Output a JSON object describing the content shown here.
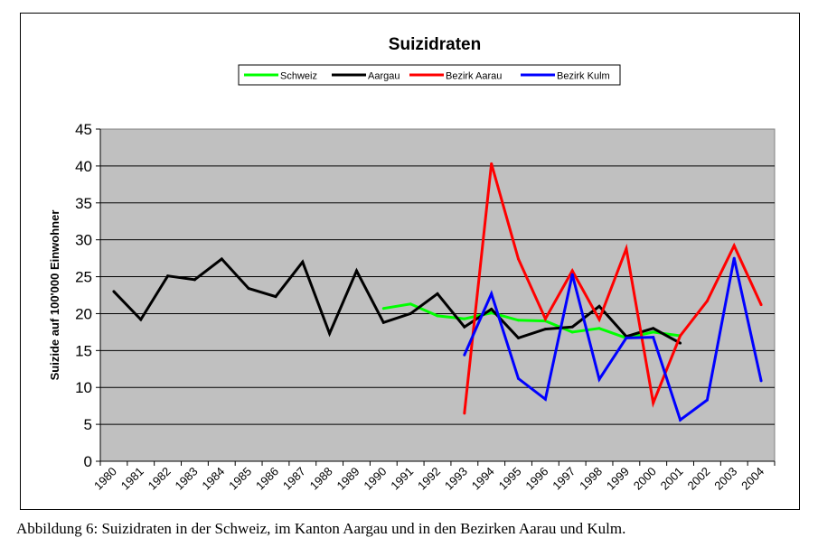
{
  "chart_data": {
    "type": "line",
    "title": "Suizidraten",
    "xlabel": "",
    "ylabel": "Suizide auf 100'000 Einwohner",
    "ylim": [
      0,
      45
    ],
    "yticks": [
      "0",
      "5",
      "10",
      "15",
      "20",
      "25",
      "30",
      "35",
      "40",
      "45"
    ],
    "categories": [
      "1980",
      "1981",
      "1982",
      "1983",
      "1984",
      "1985",
      "1986",
      "1987",
      "1988",
      "1989",
      "1990",
      "1991",
      "1992",
      "1993",
      "1994",
      "1995",
      "1996",
      "1997",
      "1998",
      "1999",
      "2000",
      "2001",
      "2002",
      "2003",
      "2004"
    ],
    "grid": true,
    "legend_position": "top",
    "plot_background": "#c0c0c0",
    "series": [
      {
        "name": "Schweiz",
        "color": "#00ff00",
        "values": [
          null,
          null,
          null,
          null,
          null,
          null,
          null,
          null,
          null,
          null,
          20.7,
          21.3,
          19.7,
          19.3,
          20.1,
          19.1,
          19.0,
          17.5,
          18.0,
          16.7,
          17.5,
          17.0,
          null,
          null,
          null
        ]
      },
      {
        "name": "Aargau",
        "color": "#000000",
        "values": [
          23.0,
          19.2,
          25.1,
          24.6,
          27.4,
          23.4,
          22.3,
          27.0,
          17.3,
          25.8,
          18.8,
          20.0,
          22.7,
          18.2,
          20.6,
          16.7,
          17.9,
          18.2,
          21.0,
          16.9,
          18.0,
          16.0,
          null,
          null,
          null
        ]
      },
      {
        "name": "Bezirk Aarau",
        "color": "#ff0000",
        "values": [
          null,
          null,
          null,
          null,
          null,
          null,
          null,
          null,
          null,
          null,
          null,
          null,
          null,
          6.5,
          40.3,
          27.4,
          19.3,
          25.8,
          19.2,
          28.8,
          7.9,
          17.0,
          21.7,
          29.2,
          21.2
        ]
      },
      {
        "name": "Bezirk Kulm",
        "color": "#0000ff",
        "values": [
          null,
          null,
          null,
          null,
          null,
          null,
          null,
          null,
          null,
          null,
          null,
          null,
          null,
          14.4,
          22.7,
          11.2,
          8.4,
          25.3,
          11.1,
          16.7,
          16.8,
          5.6,
          8.3,
          27.5,
          10.9
        ]
      }
    ]
  },
  "caption": "Abbildung 6: Suizidraten in der Schweiz, im Kanton Aargau und in den Bezirken Aarau und Kulm."
}
